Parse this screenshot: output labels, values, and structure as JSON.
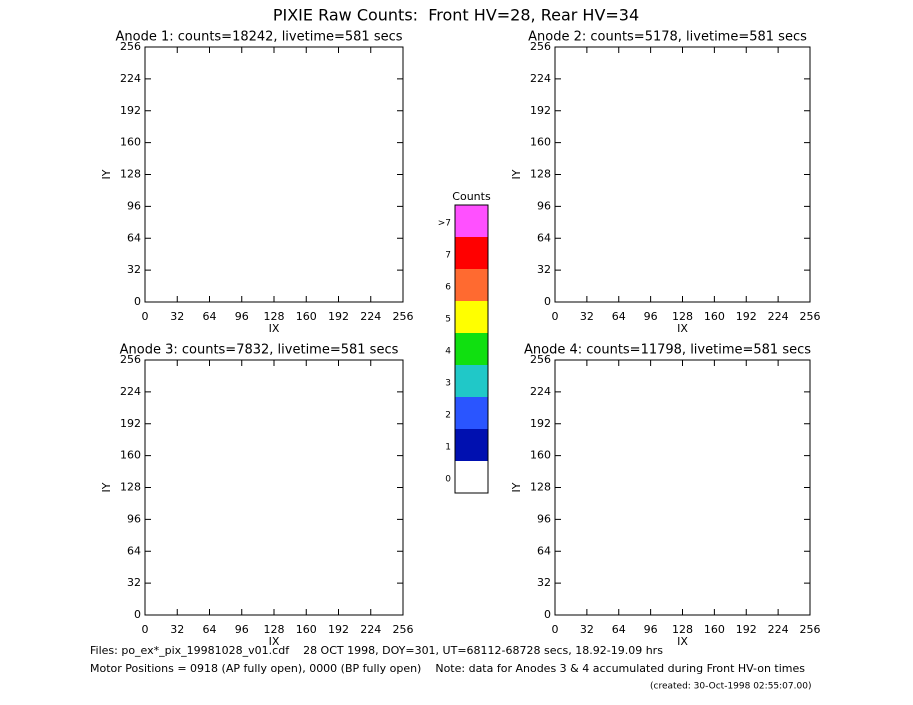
{
  "title": "PIXIE Raw Counts:  Front HV=28, Rear HV=34",
  "chart_data": [
    {
      "type": "heatmap",
      "title": "Anode 1: counts=18242, livetime=581 secs",
      "xlabel": "IX",
      "ylabel": "IY",
      "xlim": [
        0,
        256
      ],
      "ylim": [
        0,
        256
      ],
      "xticks": [
        0,
        32,
        64,
        96,
        128,
        160,
        192,
        224,
        256
      ],
      "yticks": [
        0,
        32,
        64,
        96,
        128,
        160,
        192,
        224,
        256
      ]
    },
    {
      "type": "heatmap",
      "title": "Anode 2: counts=5178, livetime=581 secs",
      "xlabel": "IX",
      "ylabel": "IY",
      "xlim": [
        0,
        256
      ],
      "ylim": [
        0,
        256
      ],
      "xticks": [
        0,
        32,
        64,
        96,
        128,
        160,
        192,
        224,
        256
      ],
      "yticks": [
        0,
        32,
        64,
        96,
        128,
        160,
        192,
        224,
        256
      ]
    },
    {
      "type": "heatmap",
      "title": "Anode 3: counts=7832, livetime=581 secs",
      "xlabel": "IX",
      "ylabel": "IY",
      "xlim": [
        0,
        256
      ],
      "ylim": [
        0,
        256
      ],
      "xticks": [
        0,
        32,
        64,
        96,
        128,
        160,
        192,
        224,
        256
      ],
      "yticks": [
        0,
        32,
        64,
        96,
        128,
        160,
        192,
        224,
        256
      ]
    },
    {
      "type": "heatmap",
      "title": "Anode 4: counts=11798, livetime=581 secs",
      "xlabel": "IX",
      "ylabel": "IY",
      "xlim": [
        0,
        256
      ],
      "ylim": [
        0,
        256
      ],
      "xticks": [
        0,
        32,
        64,
        96,
        128,
        160,
        192,
        224,
        256
      ],
      "yticks": [
        0,
        32,
        64,
        96,
        128,
        160,
        192,
        224,
        256
      ]
    }
  ],
  "colorbar": {
    "title": "Counts",
    "ticks": [
      0,
      1,
      2,
      3,
      4,
      5,
      6,
      7,
      {
        "value": 8,
        "label": ">7"
      }
    ],
    "colors": [
      "#ffffff",
      "#0010b0",
      "#2a55ff",
      "#20c8c8",
      "#10e010",
      "#ffff00",
      "#ff6a30",
      "#ff0000",
      "#ff50ff"
    ]
  },
  "footer": [
    "Files: po_ex*_pix_19981028_v01.cdf    28 OCT 1998, DOY=301, UT=68112-68728 secs, 18.92-19.09 hrs",
    "Motor Positions = 0918 (AP fully open), 0000 (BP fully open)    Note: data for Anodes 3 & 4 accumulated during Front HV-on times",
    "(created: 30-Oct-1998 02:55:07.00)"
  ]
}
